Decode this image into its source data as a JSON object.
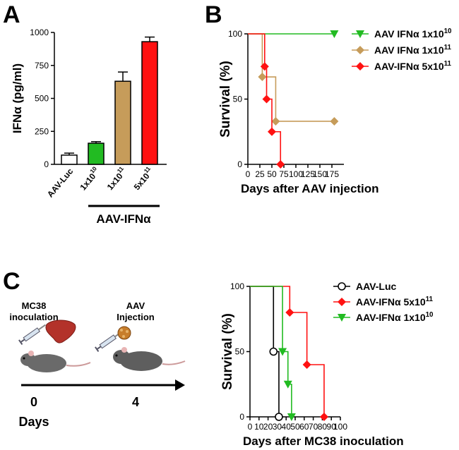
{
  "panels": {
    "a": {
      "letter": "A"
    },
    "b": {
      "letter": "B"
    },
    "c": {
      "letter": "C"
    }
  },
  "chart_data": [
    {
      "id": "A",
      "type": "bar",
      "ylabel": "IFNα (pg/ml)",
      "ylim": [
        0,
        1000
      ],
      "yticks": [
        0,
        250,
        500,
        750,
        1000
      ],
      "categories": [
        "AAV-Luc",
        "1x10^10",
        "1x10^11",
        "5x10^11"
      ],
      "category_parts": [
        {
          "base": "AAV-Luc",
          "exp": ""
        },
        {
          "base": "1x10",
          "exp": "10"
        },
        {
          "base": "1x10",
          "exp": "11"
        },
        {
          "base": "5x10",
          "exp": "11"
        }
      ],
      "values": [
        70,
        160,
        630,
        930
      ],
      "errors": [
        15,
        12,
        70,
        35
      ],
      "colors": [
        "#ffffff",
        "#22bb22",
        "#c69c5a",
        "#ff1111"
      ],
      "group_label": "AAV-IFNα",
      "grid": false
    },
    {
      "id": "B",
      "type": "line",
      "xlabel": "Days after AAV injection",
      "ylabel": "Survival (%)",
      "xlim": [
        0,
        200
      ],
      "xticks": [
        0,
        25,
        50,
        75,
        100,
        125,
        150,
        175
      ],
      "ylim": [
        0,
        100
      ],
      "yticks": [
        0,
        50,
        100
      ],
      "legend_position": "top-right",
      "grid": false,
      "series": [
        {
          "name": "AAV IFNα 1x10^10",
          "name_base": "AAV IFNα 1x10",
          "name_exp": "10",
          "color": "#22bb22",
          "marker": "triangle-down",
          "x": [
            0,
            180
          ],
          "y": [
            100,
            100
          ]
        },
        {
          "name": "AAV IFNα 1x10^11",
          "name_base": "AAV IFNα 1x10",
          "name_exp": "11",
          "color": "#c69c5a",
          "marker": "diamond",
          "x": [
            0,
            30,
            30,
            40,
            40,
            58,
            58,
            180
          ],
          "y": [
            100,
            100,
            67,
            67,
            67,
            67,
            33,
            33
          ],
          "marker_points": [
            [
              30,
              67
            ],
            [
              58,
              33
            ],
            [
              180,
              33
            ]
          ]
        },
        {
          "name": "AAV-IFNα 5x10^11",
          "name_base": "AAV-IFNα 5x10",
          "name_exp": "11",
          "color": "#ff1111",
          "marker": "diamond",
          "x": [
            0,
            35,
            35,
            39,
            39,
            50,
            50,
            68,
            68
          ],
          "y": [
            100,
            100,
            75,
            75,
            50,
            50,
            25,
            25,
            0
          ],
          "marker_points": [
            [
              35,
              75
            ],
            [
              39,
              50
            ],
            [
              50,
              25
            ],
            [
              68,
              0
            ]
          ]
        }
      ]
    },
    {
      "id": "C",
      "type": "line",
      "xlabel": "Days after MC38 inoculation",
      "ylabel": "Survival (%)",
      "xlim": [
        0,
        100
      ],
      "xticks": [
        0,
        10,
        20,
        30,
        40,
        50,
        60,
        70,
        80,
        90,
        100
      ],
      "ylim": [
        0,
        100
      ],
      "yticks": [
        0,
        50,
        100
      ],
      "legend_position": "top-right",
      "grid": false,
      "series": [
        {
          "name": "AAV-Luc",
          "name_base": "AAV-Luc",
          "name_exp": "",
          "color": "#000000",
          "marker": "circle-open",
          "x": [
            0,
            26,
            26,
            32,
            32
          ],
          "y": [
            100,
            100,
            50,
            50,
            0
          ],
          "marker_points": [
            [
              26,
              50
            ],
            [
              32,
              0
            ]
          ]
        },
        {
          "name": "AAV-IFNα 5x10^11",
          "name_base": "AAV-IFNα 5x10",
          "name_exp": "11",
          "color": "#ff1111",
          "marker": "diamond",
          "x": [
            0,
            44,
            44,
            63,
            63,
            82,
            82
          ],
          "y": [
            100,
            100,
            80,
            80,
            40,
            40,
            0
          ],
          "marker_points": [
            [
              44,
              80
            ],
            [
              63,
              40
            ],
            [
              82,
              0
            ]
          ]
        },
        {
          "name": "AAV-IFNα 1x10^10",
          "name_base": "AAV-IFNα 1x10",
          "name_exp": "10",
          "color": "#22bb22",
          "marker": "triangle-down",
          "x": [
            0,
            36,
            36,
            42,
            42,
            46,
            46
          ],
          "y": [
            100,
            100,
            50,
            50,
            25,
            25,
            0
          ],
          "marker_points": [
            [
              36,
              50
            ],
            [
              42,
              25
            ],
            [
              46,
              0
            ]
          ]
        }
      ]
    }
  ],
  "schedule": {
    "step1_line1": "MC38",
    "step1_line2": "inoculation",
    "step2_line1": "AAV",
    "step2_line2": "Injection",
    "day1": "0",
    "day2": "4",
    "days_label": "Days"
  }
}
